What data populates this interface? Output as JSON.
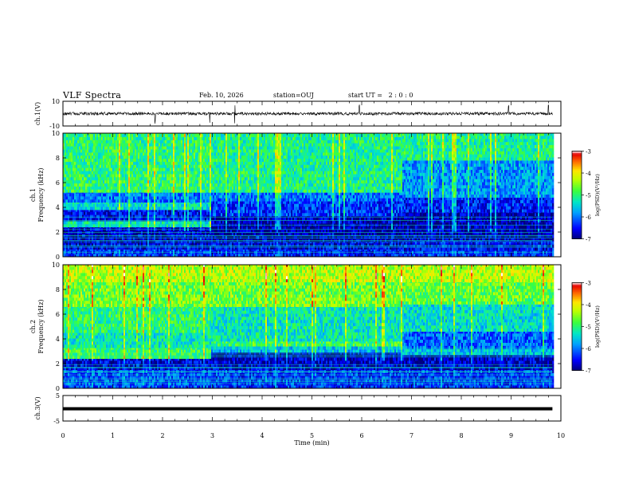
{
  "header": {
    "title": "VLF Spectra",
    "date": "Feb. 10, 2026",
    "station": "station=OUJ",
    "start": "start UT =   2 : 0 : 0"
  },
  "colorbar": {
    "label": "log(PSD)(V²/Hz)",
    "ticks": [
      "-3",
      "-4",
      "-5",
      "-6",
      "-7"
    ],
    "range": [
      -7,
      -3
    ],
    "colors": [
      "#00008b",
      "#0000ff",
      "#00c8ff",
      "#00ff80",
      "#80ff00",
      "#ffff00",
      "#ff8000",
      "#ff0000",
      "#ffffff"
    ]
  },
  "chart_data": [
    {
      "type": "line",
      "name": "ch1-waveform",
      "ylabel": "ch.1(V)",
      "ylim": [
        -10,
        10
      ],
      "yticks": [
        "10",
        "-10"
      ],
      "x": [
        0,
        9.83
      ],
      "baseline_value": 0.0,
      "spikes_at_min": [
        1.85,
        2.95,
        3.45,
        5.95,
        8.95,
        9.75
      ]
    },
    {
      "type": "heatmap",
      "name": "ch1-spectrogram",
      "ylabel_line1": "ch.1",
      "ylabel_line2": "Frequency (kHz)",
      "ylim": [
        0,
        10
      ],
      "yticks": [
        "10",
        "8",
        "6",
        "4",
        "2",
        "0"
      ],
      "xlim": [
        0,
        10
      ],
      "segments": [
        {
          "t": [
            0,
            2.95
          ],
          "bands": [
            {
              "f": [
                0,
                0.6
              ],
              "v": -6.3
            },
            {
              "f": [
                0.6,
                1.1
              ],
              "v": -6.6
            },
            {
              "f": [
                1.1,
                2.4
              ],
              "v": -6.7
            },
            {
              "f": [
                2.4,
                2.9
              ],
              "v": -5.3
            },
            {
              "f": [
                2.9,
                3.8
              ],
              "v": -6.5
            },
            {
              "f": [
                3.8,
                4.4
              ],
              "v": -5.4
            },
            {
              "f": [
                4.4,
                5.2
              ],
              "v": -6.0
            },
            {
              "f": [
                5.2,
                10
              ],
              "v": -5.0
            }
          ]
        },
        {
          "t": [
            2.95,
            6.8
          ],
          "bands": [
            {
              "f": [
                0,
                0.6
              ],
              "v": -6.4
            },
            {
              "f": [
                0.6,
                1.2
              ],
              "v": -6.6
            },
            {
              "f": [
                1.2,
                3.3
              ],
              "v": -6.8
            },
            {
              "f": [
                3.3,
                4.5
              ],
              "v": -6.3
            },
            {
              "f": [
                4.5,
                5.2
              ],
              "v": -6.0
            },
            {
              "f": [
                5.2,
                10
              ],
              "v": -5.1
            }
          ]
        },
        {
          "t": [
            6.8,
            9.83
          ],
          "bands": [
            {
              "f": [
                0,
                0.5
              ],
              "v": -6.3
            },
            {
              "f": [
                0.5,
                1.3
              ],
              "v": -6.5
            },
            {
              "f": [
                1.3,
                3.6
              ],
              "v": -6.8
            },
            {
              "f": [
                3.6,
                4.8
              ],
              "v": -6.4
            },
            {
              "f": [
                4.8,
                7.8
              ],
              "v": -5.8
            },
            {
              "f": [
                7.8,
                10
              ],
              "v": -5.1
            }
          ]
        }
      ]
    },
    {
      "type": "heatmap",
      "name": "ch2-spectrogram",
      "ylabel_line1": "ch.2",
      "ylabel_line2": "Frequency (kHz)",
      "ylim": [
        0,
        10
      ],
      "yticks": [
        "10",
        "8",
        "6",
        "4",
        "2",
        "0"
      ],
      "xlim": [
        0,
        10
      ],
      "segments": [
        {
          "t": [
            0,
            2.95
          ],
          "bands": [
            {
              "f": [
                0,
                1.5
              ],
              "v": -6.2
            },
            {
              "f": [
                1.5,
                2.4
              ],
              "v": -6.6
            },
            {
              "f": [
                2.4,
                3.3
              ],
              "v": -4.9
            },
            {
              "f": [
                3.3,
                4.5
              ],
              "v": -5.3
            },
            {
              "f": [
                4.5,
                6.6
              ],
              "v": -5.0
            },
            {
              "f": [
                6.6,
                8.6
              ],
              "v": -4.6
            },
            {
              "f": [
                8.6,
                10
              ],
              "v": -4.3
            }
          ]
        },
        {
          "t": [
            2.95,
            6.8
          ],
          "bands": [
            {
              "f": [
                0,
                1.5
              ],
              "v": -6.3
            },
            {
              "f": [
                1.5,
                2.9
              ],
              "v": -6.7
            },
            {
              "f": [
                2.9,
                3.4
              ],
              "v": -5.6
            },
            {
              "f": [
                3.4,
                3.8
              ],
              "v": -4.9
            },
            {
              "f": [
                3.8,
                6.6
              ],
              "v": -5.3
            },
            {
              "f": [
                6.6,
                8.6
              ],
              "v": -4.6
            },
            {
              "f": [
                8.6,
                10
              ],
              "v": -4.3
            }
          ]
        },
        {
          "t": [
            6.8,
            9.83
          ],
          "bands": [
            {
              "f": [
                0,
                1.5
              ],
              "v": -6.3
            },
            {
              "f": [
                1.5,
                2.7
              ],
              "v": -6.7
            },
            {
              "f": [
                2.7,
                3.2
              ],
              "v": -5.6
            },
            {
              "f": [
                3.2,
                4.6
              ],
              "v": -6.1
            },
            {
              "f": [
                4.6,
                6.8
              ],
              "v": -5.4
            },
            {
              "f": [
                6.8,
                8.6
              ],
              "v": -4.7
            },
            {
              "f": [
                8.6,
                10
              ],
              "v": -4.3
            }
          ]
        }
      ]
    },
    {
      "type": "line",
      "name": "ch3-waveform",
      "ylabel": "ch.3(V)",
      "ylim": [
        -5,
        5
      ],
      "yticks": [
        "5",
        "-5"
      ],
      "x": [
        0,
        9.83
      ],
      "baseline_value": -0.2
    }
  ],
  "xaxis": {
    "label": "Time (min)",
    "ticks": [
      "0",
      "1",
      "2",
      "3",
      "4",
      "5",
      "6",
      "7",
      "8",
      "9",
      "10"
    ],
    "xlim": [
      0,
      10
    ]
  }
}
